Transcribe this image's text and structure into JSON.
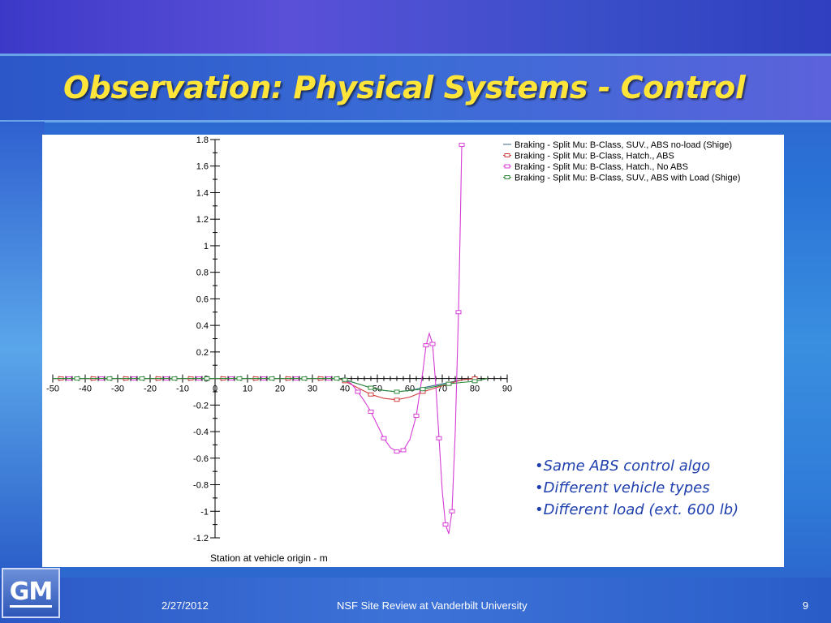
{
  "slide": {
    "title": "Observation: Physical Systems - Control",
    "bullets": [
      "•Same ABS control algo",
      "•Different vehicle types",
      "•Different load (ext. 600 lb)"
    ],
    "footer": {
      "date": "2/27/2012",
      "center": "NSF Site Review at Vanderbilt University",
      "page": "9"
    },
    "logo_text": "GM"
  },
  "chart_data": {
    "type": "line",
    "xlabel": "Station at vehicle origin - m",
    "ylabel": "",
    "xlim": [
      -50,
      90
    ],
    "ylim": [
      -1.2,
      1.8
    ],
    "x_ticks": [
      -50,
      -40,
      -30,
      -20,
      -10,
      0,
      10,
      20,
      30,
      40,
      50,
      60,
      70,
      80,
      90
    ],
    "y_ticks": [
      -1.2,
      -1,
      -0.8,
      -0.6,
      -0.4,
      -0.2,
      0,
      0.2,
      0.4,
      0.6,
      0.8,
      1,
      1.2,
      1.4,
      1.6,
      1.8
    ],
    "x_tick_labels": [
      "-50",
      "-40",
      "-30",
      "-20",
      "-10",
      "0",
      "10",
      "20",
      "30",
      "40",
      "50",
      "60",
      "70",
      "80",
      "90"
    ],
    "y_tick_labels": [
      "-1.2",
      "-1",
      "-0.8",
      "-0.6",
      "-0.4",
      "-0.2",
      "0",
      "0.2",
      "0.4",
      "0.6",
      "0.8",
      "1",
      "1.2",
      "1.4",
      "1.6",
      "1.8"
    ],
    "legend_position": "top-right",
    "grid": false,
    "series": [
      {
        "name": "Braking - Split Mu: B-Class, SUV., ABS no-load (Shige)",
        "color": "#3a6a8a",
        "marker": "none",
        "x": [
          -50,
          38,
          40,
          44,
          48,
          52,
          56,
          60,
          64,
          68,
          72,
          76,
          80
        ],
        "y": [
          0,
          0,
          -0.01,
          -0.04,
          -0.07,
          -0.09,
          -0.1,
          -0.09,
          -0.07,
          -0.05,
          -0.03,
          -0.01,
          0
        ]
      },
      {
        "name": "Braking - Split Mu: B-Class, Hatch., ABS",
        "color": "#d23c3c",
        "marker": "square",
        "x": [
          -50,
          38,
          40,
          44,
          48,
          52,
          56,
          60,
          64,
          68,
          72,
          76,
          80
        ],
        "y": [
          0,
          0,
          -0.02,
          -0.07,
          -0.12,
          -0.15,
          -0.16,
          -0.14,
          -0.1,
          -0.07,
          -0.04,
          -0.01,
          0
        ]
      },
      {
        "name": "Braking - Split Mu: B-Class, Hatch., No ABS",
        "color": "#d63cd6",
        "marker": "square",
        "x": [
          -50,
          38,
          40,
          42,
          44,
          46,
          48,
          50,
          52,
          54,
          56,
          57,
          58,
          60,
          62,
          64,
          65,
          66,
          67,
          68,
          69,
          70,
          71,
          72,
          73,
          74,
          75,
          75.5,
          76
        ],
        "y": [
          0,
          0,
          -0.01,
          -0.04,
          -0.1,
          -0.17,
          -0.25,
          -0.35,
          -0.45,
          -0.52,
          -0.55,
          -0.55,
          -0.54,
          -0.46,
          -0.28,
          0.05,
          0.25,
          0.34,
          0.26,
          -0.05,
          -0.45,
          -0.85,
          -1.1,
          -1.17,
          -1.0,
          -0.4,
          0.5,
          1.1,
          1.76
        ]
      },
      {
        "name": "Braking - Split Mu: B-Class, SUV., ABS with Load (Shige)",
        "color": "#2e8b3a",
        "marker": "square",
        "x": [
          -50,
          38,
          40,
          44,
          48,
          52,
          56,
          60,
          64,
          68,
          72,
          76,
          80,
          84
        ],
        "y": [
          0,
          0,
          -0.01,
          -0.04,
          -0.07,
          -0.09,
          -0.1,
          -0.09,
          -0.08,
          -0.06,
          -0.04,
          -0.03,
          -0.02,
          0
        ]
      }
    ]
  }
}
